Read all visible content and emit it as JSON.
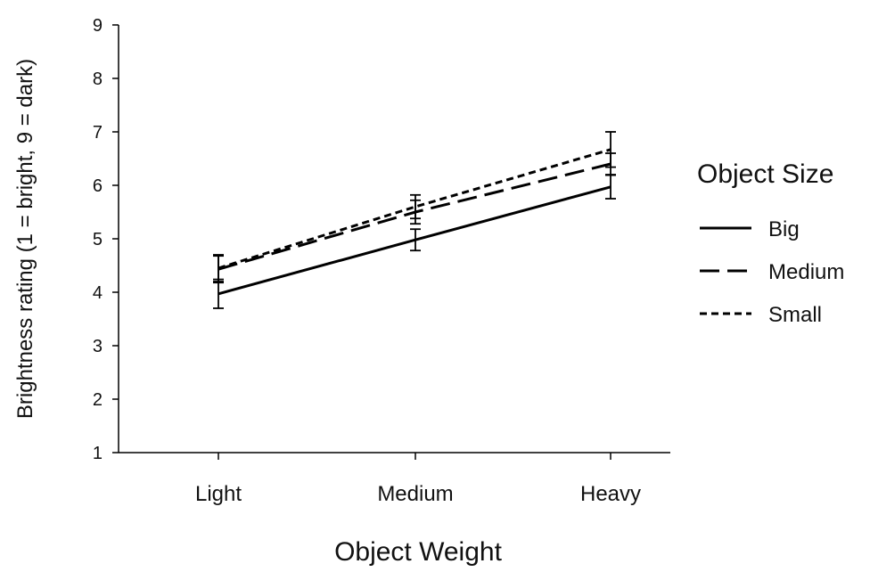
{
  "chart_data": {
    "type": "line",
    "categories": [
      "Light",
      "Medium",
      "Heavy"
    ],
    "xlabel": "Object Weight",
    "ylabel": "Brightness rating (1 = bright, 9 = dark)",
    "ylim": [
      1,
      9
    ],
    "yticks": [
      1,
      2,
      3,
      4,
      5,
      6,
      7,
      8,
      9
    ],
    "grid": false,
    "legend": {
      "title": "Object Size",
      "position": "right"
    },
    "series": [
      {
        "name": "Big",
        "dash": "solid",
        "values": [
          3.97,
          4.98,
          5.97
        ],
        "errors": [
          0.27,
          0.2,
          0.22
        ]
      },
      {
        "name": "Medium",
        "dash": "long-dash",
        "values": [
          4.43,
          5.5,
          6.4
        ],
        "errors": [
          0.25,
          0.22,
          0.2
        ]
      },
      {
        "name": "Small",
        "dash": "short-dash",
        "values": [
          4.45,
          5.6,
          6.67
        ],
        "errors": [
          0.25,
          0.22,
          0.33
        ]
      }
    ],
    "colors": {
      "line": "#000000",
      "text": "#111111"
    }
  }
}
